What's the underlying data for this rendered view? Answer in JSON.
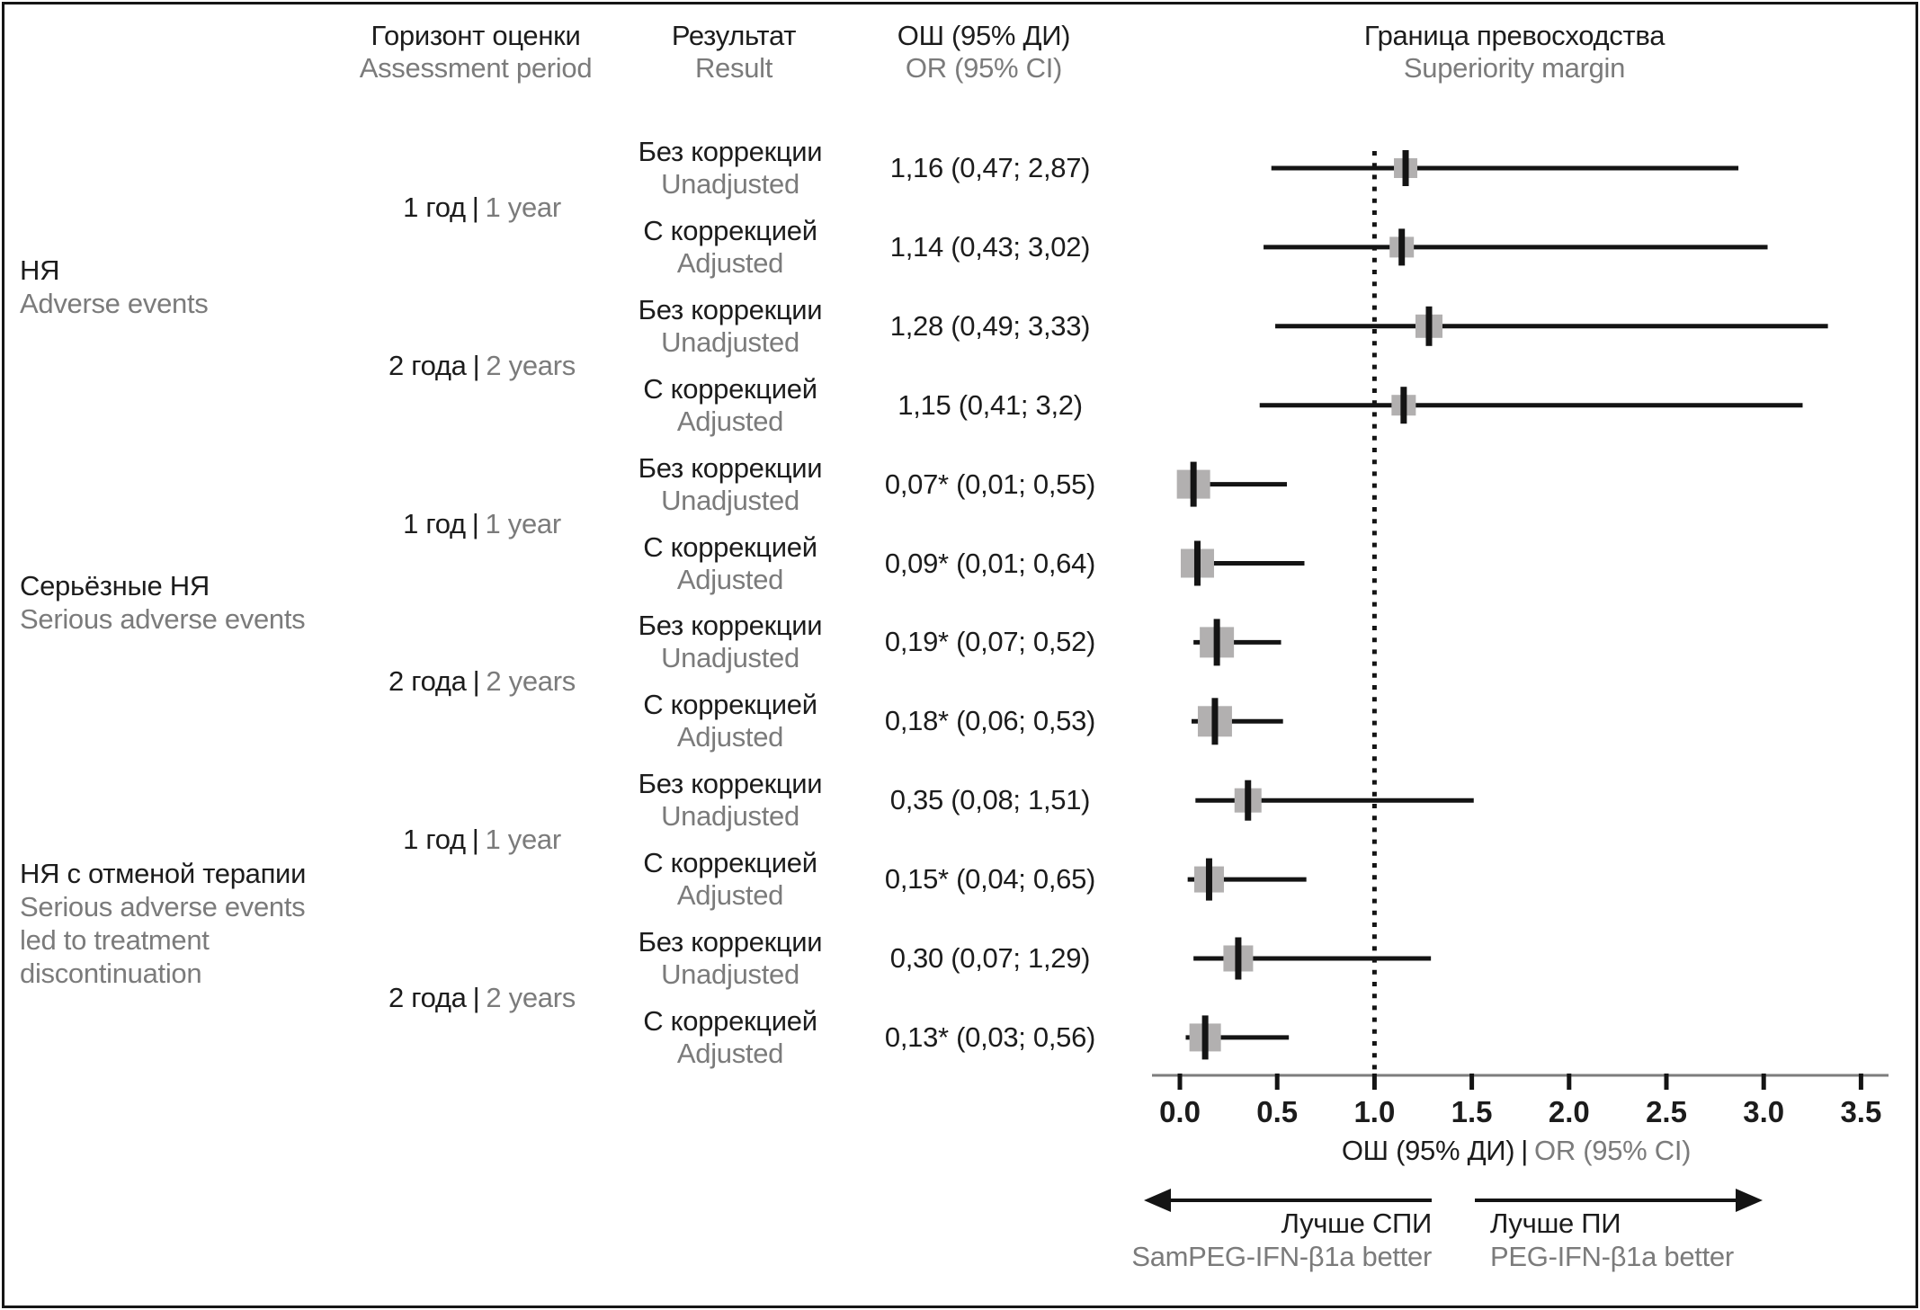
{
  "header": {
    "period": {
      "ru": "Горизонт оценки",
      "en": "Assessment period"
    },
    "result": {
      "ru": "Результат",
      "en": "Result"
    },
    "or": {
      "ru": "ОШ (95% ДИ)",
      "en": "OR (95% CI)"
    },
    "margin": {
      "ru": "Граница превосходства",
      "en": "Superiority margin"
    }
  },
  "chart_data": {
    "type": "forest",
    "x_axis": {
      "ticks": [
        "0.0",
        "0.5",
        "1.0",
        "1.5",
        "2.0",
        "2.5",
        "3.0",
        "3.5"
      ],
      "range": [
        0,
        3.5
      ],
      "reference_line": 1.0,
      "label_ru": "ОШ (95% ДИ)",
      "label_sep": "|",
      "label_en": "OR (95% CI)"
    },
    "groups": [
      {
        "label_ru": "НЯ",
        "label_en_lines": [
          "Adverse events"
        ],
        "periods": [
          {
            "ru": "1 год",
            "sep": "|",
            "en": "1 year",
            "rows": [
              0,
              1
            ]
          },
          {
            "ru": "2 года",
            "sep": "|",
            "en": "2 years",
            "rows": [
              2,
              3
            ]
          }
        ]
      },
      {
        "label_ru": "Серьёзные НЯ",
        "label_en_lines": [
          "Serious adverse events"
        ],
        "periods": [
          {
            "ru": "1 год",
            "sep": "|",
            "en": "1 year",
            "rows": [
              4,
              5
            ]
          },
          {
            "ru": "2 года",
            "sep": "|",
            "en": "2 years",
            "rows": [
              6,
              7
            ]
          }
        ]
      },
      {
        "label_ru": "НЯ с отменой терапии",
        "label_en_lines": [
          "Serious adverse events",
          "led to treatment",
          "discontinuation"
        ],
        "periods": [
          {
            "ru": "1 год",
            "sep": "|",
            "en": "1 year",
            "rows": [
              8,
              9
            ]
          },
          {
            "ru": "2 года",
            "sep": "|",
            "en": "2 years",
            "rows": [
              10,
              11
            ]
          }
        ]
      }
    ],
    "rows": [
      {
        "result_ru": "Без коррекции",
        "result_en": "Unadjusted",
        "or_text": "1,16 (0,47; 2,87)",
        "or": 1.16,
        "lo": 0.47,
        "hi": 2.87,
        "significant": false,
        "mw": 26,
        "mh": 22
      },
      {
        "result_ru": "С коррекцией",
        "result_en": "Adjusted",
        "or_text": "1,14 (0,43; 3,02)",
        "or": 1.14,
        "lo": 0.43,
        "hi": 3.02,
        "significant": false,
        "mw": 27,
        "mh": 23
      },
      {
        "result_ru": "Без коррекции",
        "result_en": "Unadjusted",
        "or_text": "1,28 (0,49; 3,33)",
        "or": 1.28,
        "lo": 0.49,
        "hi": 3.33,
        "significant": false,
        "mw": 30,
        "mh": 26
      },
      {
        "result_ru": "С коррекцией",
        "result_en": "Adjusted",
        "or_text": "1,15 (0,41; 3,2)",
        "or": 1.15,
        "lo": 0.41,
        "hi": 3.2,
        "significant": false,
        "mw": 27,
        "mh": 23
      },
      {
        "result_ru": "Без коррекции",
        "result_en": "Unadjusted",
        "or_text": "0,07* (0,01; 0,55)",
        "or": 0.07,
        "lo": 0.01,
        "hi": 0.55,
        "significant": true,
        "mw": 37,
        "mh": 32
      },
      {
        "result_ru": "С коррекцией",
        "result_en": "Adjusted",
        "or_text": "0,09* (0,01; 0,64)",
        "or": 0.09,
        "lo": 0.01,
        "hi": 0.64,
        "significant": true,
        "mw": 37,
        "mh": 32
      },
      {
        "result_ru": "Без коррекции",
        "result_en": "Unadjusted",
        "or_text": "0,19* (0,07; 0,52)",
        "or": 0.19,
        "lo": 0.07,
        "hi": 0.52,
        "significant": true,
        "mw": 38,
        "mh": 34
      },
      {
        "result_ru": "С коррекцией",
        "result_en": "Adjusted",
        "or_text": "0,18* (0,06; 0,53)",
        "or": 0.18,
        "lo": 0.06,
        "hi": 0.53,
        "significant": true,
        "mw": 38,
        "mh": 34
      },
      {
        "result_ru": "Без коррекции",
        "result_en": "Unadjusted",
        "or_text": "0,35 (0,08; 1,51)",
        "or": 0.35,
        "lo": 0.08,
        "hi": 1.51,
        "significant": false,
        "mw": 30,
        "mh": 27
      },
      {
        "result_ru": "С коррекцией",
        "result_en": "Adjusted",
        "or_text": "0,15* (0,04; 0,65)",
        "or": 0.15,
        "lo": 0.04,
        "hi": 0.65,
        "significant": true,
        "mw": 33,
        "mh": 29
      },
      {
        "result_ru": "Без коррекции",
        "result_en": "Unadjusted",
        "or_text": "0,30 (0,07; 1,29)",
        "or": 0.3,
        "lo": 0.07,
        "hi": 1.29,
        "significant": false,
        "mw": 33,
        "mh": 29
      },
      {
        "result_ru": "С коррекцией",
        "result_en": "Adjusted",
        "or_text": "0,13* (0,03; 0,56)",
        "or": 0.13,
        "lo": 0.03,
        "hi": 0.56,
        "significant": true,
        "mw": 35,
        "mh": 31
      }
    ],
    "direction": {
      "left": {
        "ru": "Лучше СПИ",
        "en": "SamPEG-IFN-β1a better"
      },
      "right": {
        "ru": "Лучше ПИ",
        "en": "PEG-IFN-β1a better"
      }
    }
  },
  "colors": {
    "text_black": "#1c1c1c",
    "text_gray": "#7b7b7b",
    "marker_fill": "#b2b0b0",
    "ci_line": "#141414",
    "axis_line": "#7d7d7d",
    "frame": "#151515"
  }
}
